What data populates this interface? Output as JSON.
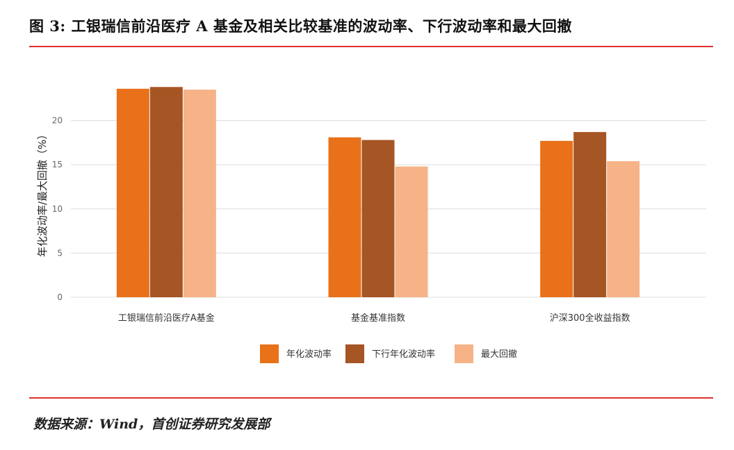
{
  "figure": {
    "title": "图 3: 工银瑞信前沿医疗 A 基金及相关比较基准的波动率、下行波动率和最大回撤",
    "source": "数据来源：Wind，首创证券研究发展部"
  },
  "colors": {
    "rule": "#e0312f",
    "grid": "#dddddd"
  },
  "chart_data": {
    "type": "bar",
    "categories": [
      "工银瑞信前沿医疗A基金",
      "基金基准指数",
      "沪深300全收益指数"
    ],
    "series": [
      {
        "name": "年化波动率",
        "color": "#e8711a",
        "values": [
          23.6,
          18.1,
          17.7
        ]
      },
      {
        "name": "下行年化波动率",
        "color": "#a65524",
        "values": [
          23.8,
          17.8,
          18.7
        ]
      },
      {
        "name": "最大回撤",
        "color": "#f5b387",
        "values": [
          23.5,
          14.8,
          15.4
        ]
      }
    ],
    "ylabel": "年化波动率/最大回撤（%）",
    "ylim": [
      0,
      25
    ],
    "yticks": [
      0,
      5,
      10,
      15,
      20
    ],
    "grid": true,
    "legend": "bottom-center"
  }
}
